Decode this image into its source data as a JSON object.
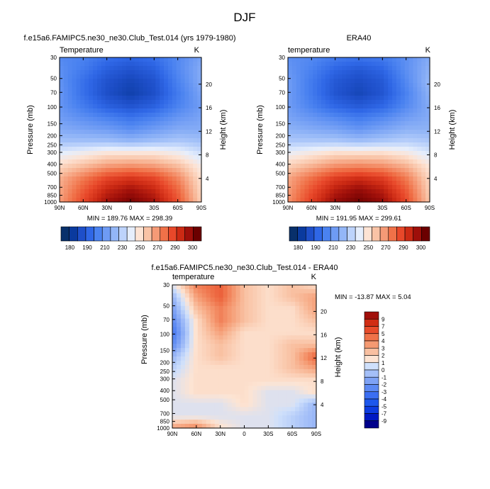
{
  "figure": {
    "title": "DJF"
  },
  "colors": {
    "temp_palette": [
      "#08306b",
      "#0a3a9e",
      "#1e4fc9",
      "#2f67e6",
      "#4a82f0",
      "#6e9bf4",
      "#93b6f7",
      "#bdd3fb",
      "#e6eefc",
      "#fde3d4",
      "#f9c3a6",
      "#f59a76",
      "#f07148",
      "#e8482a",
      "#cc2a14",
      "#9e0f0a",
      "#6b0000"
    ],
    "diff_palette": [
      "#00008b",
      "#0019c4",
      "#0d3ce0",
      "#1d57ec",
      "#3b6ef2",
      "#5c89f3",
      "#7ea2f5",
      "#a4bff8",
      "#cfe0fb",
      "#fde4d3",
      "#f9c0a1",
      "#f59a72",
      "#ef7249",
      "#e84c2b",
      "#d12d14",
      "#a10f0a"
    ]
  },
  "panels": [
    {
      "id": "model",
      "main_title": "f.e15a6.FAMIPC5.ne30_ne30.Club_Test.014 (yrs 1979-1980)",
      "left_label": "Temperature",
      "right_label": "K",
      "minmax": "MIN = 189.76  MAX = 298.39",
      "ylabel": "Pressure (mb)",
      "y2label": "Height (km)"
    },
    {
      "id": "obs",
      "main_title": "ERA40",
      "left_label": "temperature",
      "right_label": "K",
      "minmax": "MIN = 191.95  MAX = 299.61",
      "ylabel": "Pressure (mb)",
      "y2label": "Height (km)"
    },
    {
      "id": "diff",
      "main_title": "f.e15a6.FAMIPC5.ne30_ne30.Club_Test.014 - ERA40",
      "left_label": "temperature",
      "right_label": "K",
      "minmax": "MIN = -13.87  MAX =   5.04",
      "ylabel": "Pressure (mb)",
      "y2label": "Height (km)"
    }
  ],
  "labelbars": {
    "temp": {
      "labels": [
        "180",
        "190",
        "210",
        "230",
        "250",
        "270",
        "290",
        "300"
      ]
    },
    "diff": {
      "labels": [
        "9",
        "7",
        "5",
        "4",
        "3",
        "2",
        "1",
        "0",
        "-1",
        "-2",
        "-3",
        "-4",
        "-5",
        "-7",
        "-9"
      ]
    }
  },
  "chart_data": [
    {
      "type": "heatmap",
      "title": "f.e15a6.FAMIPC5.ne30_ne30.Club_Test.014 (yrs 1979-1980)",
      "xlabel": "",
      "ylabel": "Pressure (mb)",
      "y2label": "Height (km)",
      "x_ticks": [
        "90N",
        "60N",
        "30N",
        "0",
        "30S",
        "60S",
        "90S"
      ],
      "y_ticks": [
        "30",
        "50",
        "70",
        "100",
        "150",
        "200",
        "250",
        "300",
        "400",
        "500",
        "700",
        "850",
        "1000"
      ],
      "y2_ticks": [
        "20",
        "16",
        "12",
        "8",
        "4"
      ],
      "yscale": "log-pressure",
      "x": [
        90,
        60,
        30,
        0,
        -30,
        -60,
        -90
      ],
      "y": [
        30,
        50,
        70,
        100,
        150,
        200,
        250,
        300,
        400,
        500,
        700,
        850,
        1000
      ],
      "values": [
        [
          212,
          210,
          205,
          202,
          205,
          212,
          220
        ],
        [
          214,
          208,
          200,
          196,
          200,
          212,
          222
        ],
        [
          215,
          205,
          196,
          192,
          196,
          210,
          222
        ],
        [
          216,
          205,
          195,
          190,
          195,
          208,
          220
        ],
        [
          216,
          208,
          200,
          196,
          200,
          210,
          218
        ],
        [
          218,
          214,
          210,
          206,
          210,
          216,
          220
        ],
        [
          222,
          220,
          218,
          214,
          218,
          222,
          222
        ],
        [
          228,
          228,
          228,
          226,
          228,
          230,
          228
        ],
        [
          240,
          244,
          248,
          248,
          248,
          244,
          236
        ],
        [
          250,
          256,
          262,
          264,
          262,
          256,
          244
        ],
        [
          258,
          268,
          278,
          282,
          278,
          266,
          248
        ],
        [
          260,
          274,
          286,
          292,
          286,
          272,
          250
        ],
        [
          262,
          278,
          292,
          298,
          292,
          276,
          252
        ]
      ],
      "legend": "bottom labelbar"
    },
    {
      "type": "heatmap",
      "title": "ERA40",
      "xlabel": "",
      "ylabel": "Pressure (mb)",
      "y2label": "Height (km)",
      "x_ticks": [
        "90N",
        "60N",
        "30N",
        "0",
        "30S",
        "60S",
        "90S"
      ],
      "y_ticks": [
        "30",
        "50",
        "70",
        "100",
        "150",
        "200",
        "250",
        "300",
        "400",
        "500",
        "700",
        "850",
        "1000"
      ],
      "y2_ticks": [
        "20",
        "16",
        "12",
        "8",
        "4"
      ],
      "yscale": "log-pressure",
      "x": [
        90,
        60,
        30,
        0,
        -30,
        -60,
        -90
      ],
      "y": [
        30,
        50,
        70,
        100,
        150,
        200,
        250,
        300,
        400,
        500,
        700,
        850,
        1000
      ],
      "values": [
        [
          214,
          212,
          208,
          206,
          208,
          214,
          222
        ],
        [
          216,
          210,
          202,
          198,
          202,
          214,
          224
        ],
        [
          218,
          208,
          198,
          194,
          198,
          212,
          226
        ],
        [
          218,
          208,
          197,
          192,
          197,
          210,
          224
        ],
        [
          218,
          210,
          202,
          198,
          202,
          212,
          222
        ],
        [
          220,
          216,
          212,
          208,
          212,
          218,
          222
        ],
        [
          224,
          222,
          220,
          216,
          220,
          224,
          224
        ],
        [
          230,
          230,
          230,
          228,
          230,
          232,
          230
        ],
        [
          242,
          246,
          250,
          250,
          250,
          246,
          238
        ],
        [
          252,
          258,
          264,
          266,
          264,
          258,
          246
        ],
        [
          260,
          270,
          280,
          284,
          280,
          268,
          250
        ],
        [
          262,
          276,
          288,
          294,
          288,
          274,
          252
        ],
        [
          264,
          280,
          294,
          299,
          294,
          278,
          254
        ]
      ],
      "legend": "bottom labelbar"
    },
    {
      "type": "heatmap",
      "title": "f.e15a6.FAMIPC5.ne30_ne30.Club_Test.014 - ERA40",
      "xlabel": "",
      "ylabel": "Pressure (mb)",
      "y2label": "Height (km)",
      "x_ticks": [
        "90N",
        "60N",
        "30N",
        "0",
        "30S",
        "60S",
        "90S"
      ],
      "y_ticks": [
        "30",
        "50",
        "70",
        "100",
        "150",
        "200",
        "250",
        "300",
        "400",
        "500",
        "700",
        "850",
        "1000"
      ],
      "y2_ticks": [
        "20",
        "16",
        "12",
        "8",
        "4"
      ],
      "yscale": "log-pressure",
      "x": [
        90,
        60,
        30,
        0,
        -30,
        -60,
        -90
      ],
      "y": [
        30,
        50,
        70,
        100,
        150,
        200,
        250,
        300,
        400,
        500,
        700,
        850,
        1000
      ],
      "values": [
        [
          -1,
          -5,
          -6,
          -3,
          -2,
          -3,
          -2
        ],
        [
          1,
          -4,
          -6,
          -3,
          -2,
          -3,
          -4
        ],
        [
          2,
          -3,
          -5,
          -3,
          -2,
          -2,
          -4
        ],
        [
          3,
          -2,
          -5,
          -3,
          -2,
          -2,
          -3
        ],
        [
          4,
          -2,
          -4,
          -2,
          -2,
          -2,
          -2
        ],
        [
          3,
          -2,
          -3,
          -2,
          -2,
          -3,
          -3
        ],
        [
          1,
          -2,
          -3,
          -2,
          -2,
          -3,
          -6
        ],
        [
          0,
          -2,
          -2,
          -2,
          -2,
          -3,
          -4
        ],
        [
          -1,
          -2,
          -2,
          -2,
          -2,
          -2,
          -2
        ],
        [
          -1,
          -2,
          -2,
          -2,
          -1,
          -1,
          -2
        ],
        [
          -1,
          -1,
          -1,
          -2,
          -1,
          -1,
          1
        ],
        [
          -1,
          -1,
          -1,
          -1,
          -1,
          0,
          1
        ],
        [
          -4,
          -5,
          -2,
          -1,
          -1,
          0,
          1
        ]
      ],
      "legend": "right labelbar"
    }
  ]
}
